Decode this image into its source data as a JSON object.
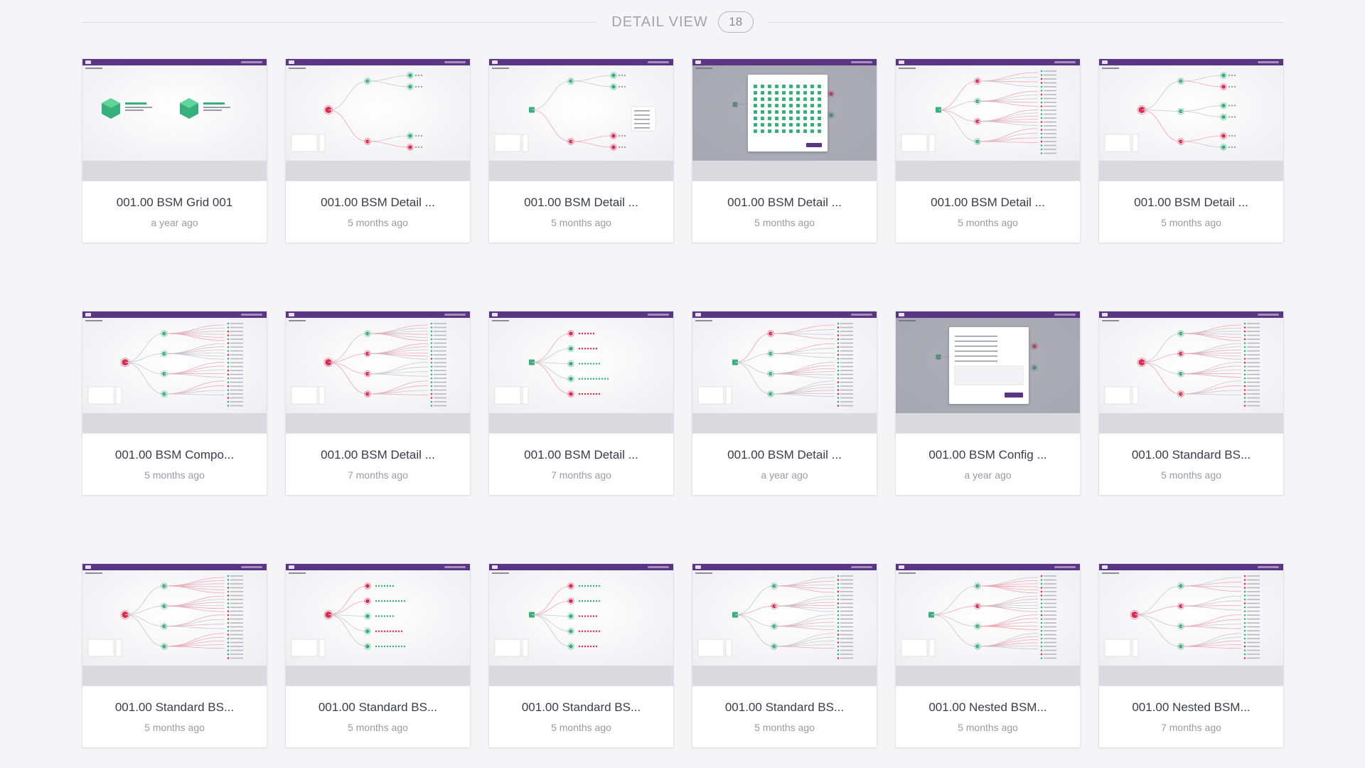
{
  "section": {
    "title": "DETAIL VIEW",
    "count": "18"
  },
  "colors": {
    "appbar": "#5a3583",
    "healthy": "#35b07a",
    "critical": "#e0284e",
    "link_red": "#f0a8b5",
    "link_grey": "#c8c8d0"
  },
  "cards": [
    {
      "title": "001.00 BSM Grid 001",
      "time": "a year ago",
      "variant": "grid"
    },
    {
      "title": "001.00 BSM Detail ...",
      "time": "5 months ago",
      "variant": "tree-small"
    },
    {
      "title": "001.00 BSM Detail ...",
      "time": "5 months ago",
      "variant": "tree-menu"
    },
    {
      "title": "001.00 BSM Detail ...",
      "time": "5 months ago",
      "variant": "icon-dialog"
    },
    {
      "title": "001.00 BSM Detail ...",
      "time": "5 months ago",
      "variant": "tree-wide"
    },
    {
      "title": "001.00 BSM Detail ...",
      "time": "5 months ago",
      "variant": "tree-sparse"
    },
    {
      "title": "001.00 BSM Compo...",
      "time": "5 months ago",
      "variant": "tree-wide"
    },
    {
      "title": "001.00 BSM Detail ...",
      "time": "7 months ago",
      "variant": "tree-dense"
    },
    {
      "title": "001.00 BSM Detail ...",
      "time": "7 months ago",
      "variant": "tree-labels"
    },
    {
      "title": "001.00 BSM Detail ...",
      "time": "a year ago",
      "variant": "tree-column"
    },
    {
      "title": "001.00 BSM Config ...",
      "time": "a year ago",
      "variant": "config-dialog"
    },
    {
      "title": "001.00 Standard BS...",
      "time": "5 months ago",
      "variant": "tree-wide"
    },
    {
      "title": "001.00 Standard BS...",
      "time": "5 months ago",
      "variant": "tree-wide"
    },
    {
      "title": "001.00 Standard BS...",
      "time": "5 months ago",
      "variant": "tree-grid"
    },
    {
      "title": "001.00 Standard BS...",
      "time": "5 months ago",
      "variant": "tree-grid"
    },
    {
      "title": "001.00 Standard BS...",
      "time": "5 months ago",
      "variant": "tree-dense"
    },
    {
      "title": "001.00 Nested BSM...",
      "time": "5 months ago",
      "variant": "tree-nested"
    },
    {
      "title": "001.00 Nested BSM...",
      "time": "7 months ago",
      "variant": "tree-nested"
    }
  ]
}
